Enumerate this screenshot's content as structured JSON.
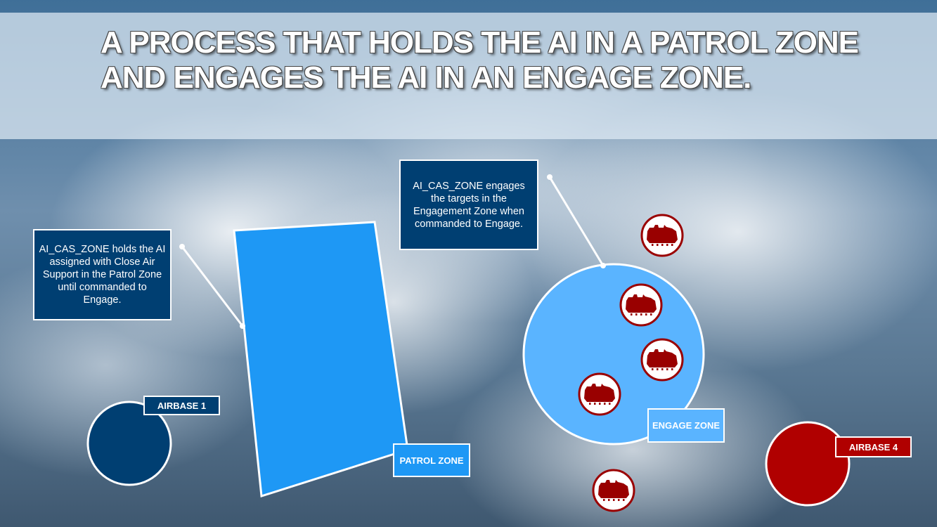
{
  "title": "A PROCESS THAT HOLDS THE AI IN A PATROL ZONE AND ENGAGES THE AI IN AN ENGAGE ZONE.",
  "callouts": {
    "patrol": "AI_CAS_ZONE holds the AI assigned with Close Air Support in the Patrol Zone until commanded to Engage.",
    "engage": "AI_CAS_ZONE engages the targets in the Engagement Zone when commanded to Engage."
  },
  "labels": {
    "patrol_zone": "PATROL ZONE",
    "engage_zone": "ENGAGE ZONE",
    "airbase1": "AIRBASE 1",
    "airbase4": "AIRBASE 4"
  },
  "icons": {
    "target": "tank-icon"
  },
  "colors": {
    "navy": "#003f72",
    "patrol": "#1e98f5",
    "engage": "#5ab4ff",
    "red": "#b00000"
  }
}
